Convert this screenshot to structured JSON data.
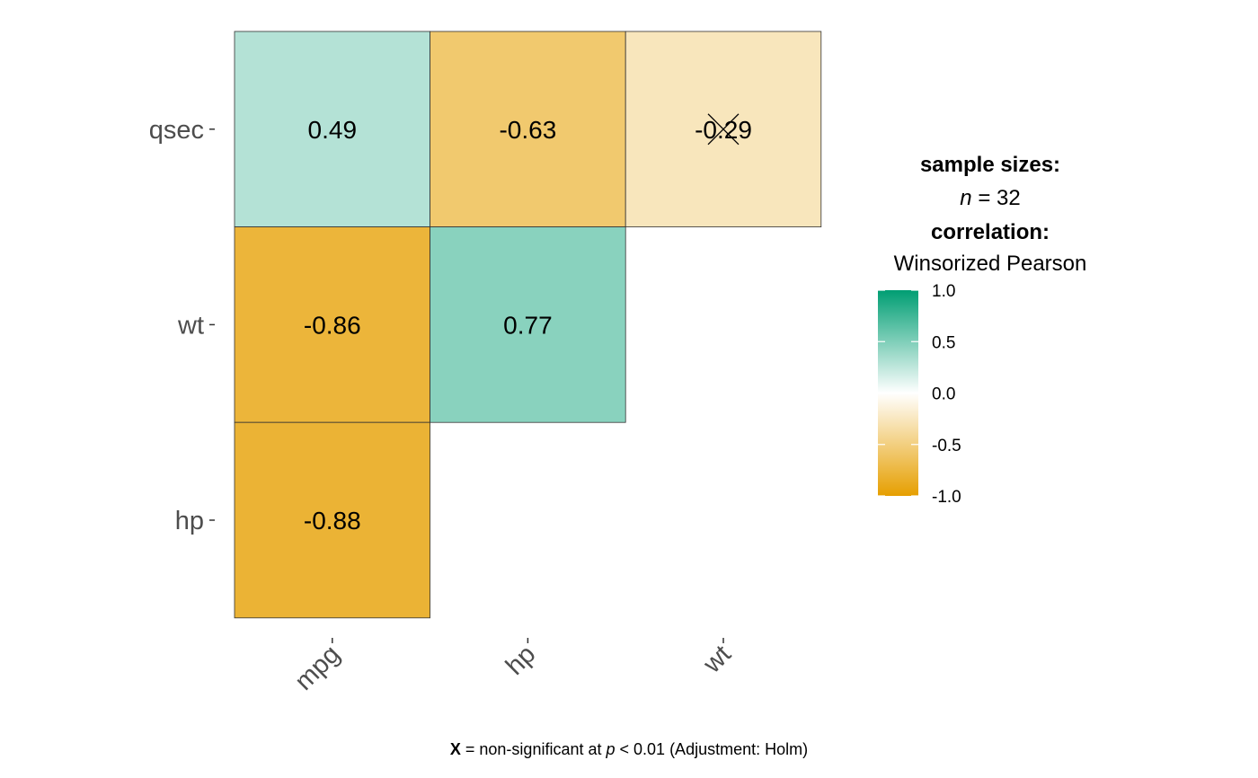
{
  "chart_data": {
    "type": "heatmap",
    "x_categories": [
      "mpg",
      "hp",
      "wt"
    ],
    "y_categories": [
      "qsec",
      "wt",
      "hp"
    ],
    "cells": [
      {
        "x": "mpg",
        "y": "qsec",
        "value": 0.49,
        "label": "0.49",
        "significant": true
      },
      {
        "x": "hp",
        "y": "qsec",
        "value": -0.63,
        "label": "-0.63",
        "significant": true
      },
      {
        "x": "wt",
        "y": "qsec",
        "value": -0.29,
        "label": "-0.29",
        "significant": false
      },
      {
        "x": "mpg",
        "y": "wt",
        "value": -0.86,
        "label": "-0.86",
        "significant": true
      },
      {
        "x": "hp",
        "y": "wt",
        "value": 0.77,
        "label": "0.77",
        "significant": true
      },
      {
        "x": "mpg",
        "y": "hp",
        "value": -0.88,
        "label": "-0.88",
        "significant": true
      }
    ],
    "legend": {
      "sample_sizes_title": "sample sizes:",
      "n_symbol": "n",
      "n_equals": " = 32",
      "correlation_title": "correlation:",
      "correlation_method": "Winsorized Pearson",
      "ticks": [
        1.0,
        0.5,
        0.0,
        -0.5,
        -1.0
      ],
      "tick_labels": [
        "1.0",
        "0.5",
        "0.0",
        "-0.5",
        "-1.0"
      ],
      "range": [
        -1,
        1
      ]
    },
    "colors": {
      "high": "#009E73",
      "mid": "#FFFFFF",
      "low": "#E69F00"
    },
    "caption": {
      "mark": "X",
      "text1": " = non-significant at ",
      "p_symbol": "p",
      "text2": " < 0.01 (Adjustment: Holm)"
    }
  }
}
